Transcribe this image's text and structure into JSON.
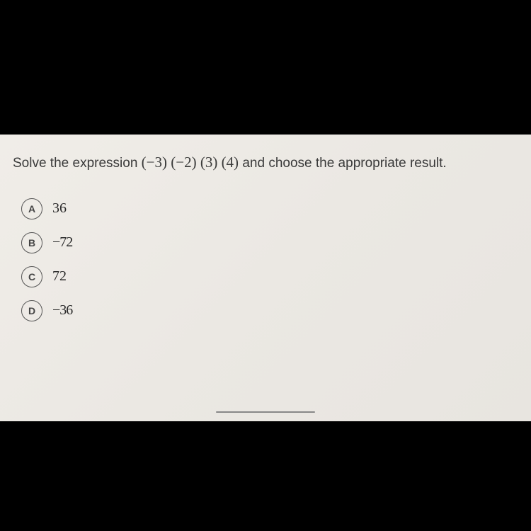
{
  "question": {
    "prefix": "Solve the expression ",
    "expression": "(−3) (−2) (3) (4)",
    "suffix": " and choose the appropriate result."
  },
  "options": [
    {
      "letter": "A",
      "value": "36"
    },
    {
      "letter": "B",
      "value": "−72"
    },
    {
      "letter": "C",
      "value": "72"
    },
    {
      "letter": "D",
      "value": "−36"
    }
  ],
  "styling": {
    "screen_bg": "#f0ede8",
    "body_bg": "#000000",
    "text_color": "#3a3a3a",
    "circle_border": "#555555",
    "question_fontsize": 19,
    "option_fontsize": 20,
    "letter_fontsize": 14,
    "circle_size": 30
  }
}
